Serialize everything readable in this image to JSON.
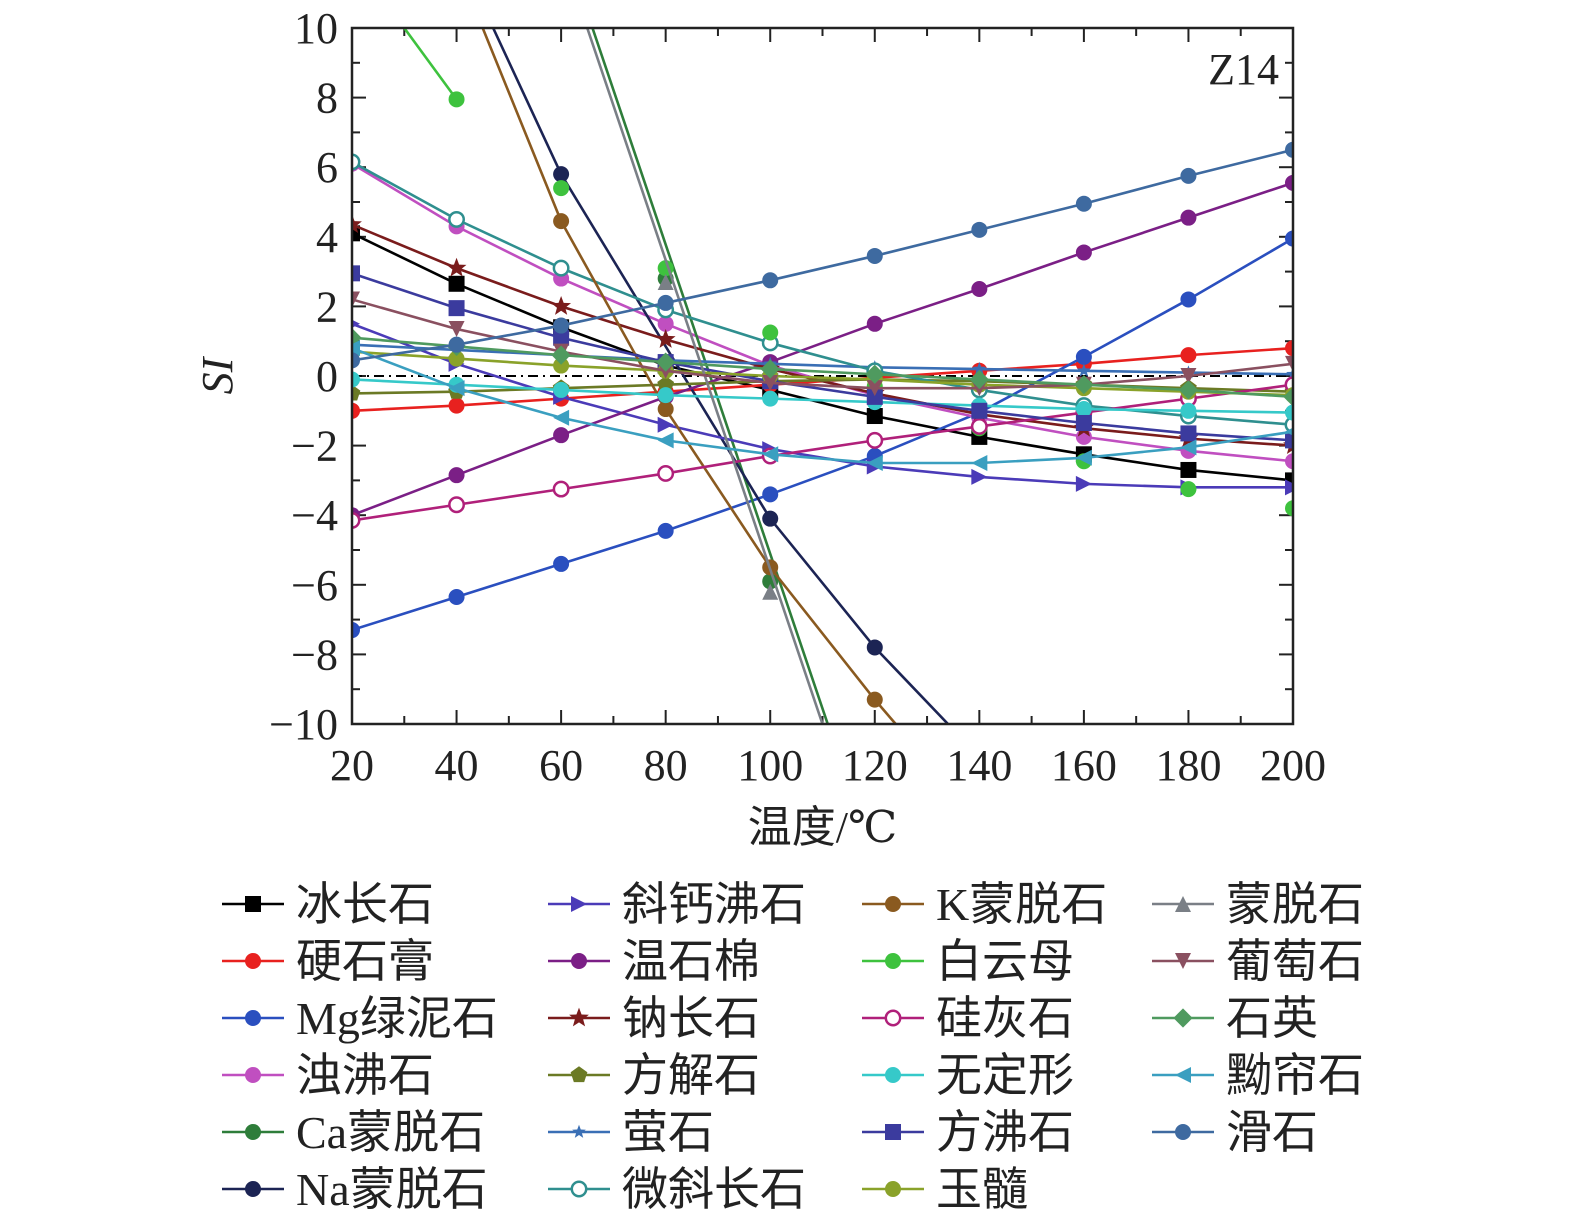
{
  "chart_data": {
    "type": "line",
    "panel_label": "Z14",
    "xlabel": "温度/℃",
    "ylabel": "SI",
    "xlim": [
      20,
      200
    ],
    "ylim": [
      -10,
      10
    ],
    "x_ticks": [
      "20",
      "40",
      "60",
      "80",
      "100",
      "120",
      "140",
      "160",
      "180",
      "200"
    ],
    "y_ticks": [
      "10",
      "8",
      "6",
      "4",
      "2",
      "0",
      "−2",
      "−4",
      "−6",
      "−8",
      "−10"
    ],
    "reference_line": {
      "y": 0,
      "style": "dash-dot",
      "color": "#000000"
    },
    "x": [
      20,
      40,
      60,
      80,
      100,
      120,
      140,
      160,
      180,
      200
    ],
    "legend_columns": 4,
    "series": [
      {
        "name": "冰长石",
        "color": "#000000",
        "marker": "square",
        "values": [
          4.1,
          2.65,
          1.4,
          0.3,
          -0.4,
          -1.15,
          -1.75,
          -2.25,
          -2.7,
          -3.0
        ]
      },
      {
        "name": "硬石膏",
        "color": "#e8211f",
        "marker": "circle",
        "values": [
          -1.0,
          -0.85,
          -0.65,
          -0.45,
          -0.25,
          -0.05,
          0.15,
          0.35,
          0.6,
          0.8
        ]
      },
      {
        "name": "Mg绿泥石",
        "color": "#2a4fbf",
        "marker": "circle",
        "values": [
          -7.3,
          -6.35,
          -5.4,
          -4.45,
          -3.4,
          -2.3,
          -1.05,
          0.55,
          2.2,
          3.95
        ]
      },
      {
        "name": "浊沸石",
        "color": "#c04fc0",
        "marker": "circle",
        "values": [
          6.1,
          4.3,
          2.8,
          1.5,
          0.3,
          -0.55,
          -1.2,
          -1.75,
          -2.15,
          -2.45
        ]
      },
      {
        "name": "Ca蒙脱石",
        "color": "#2e7d3a",
        "marker": "circle",
        "values": [
          null,
          null,
          null,
          2.8,
          -5.9,
          null,
          null,
          null,
          null,
          null
        ],
        "lines_x": [
          66,
          111
        ],
        "lines_y": [
          10,
          -10
        ]
      },
      {
        "name": "Na蒙脱石",
        "color": "#1c2454",
        "marker": "circle",
        "values": [
          null,
          null,
          5.8,
          null,
          -4.1,
          -7.8,
          null,
          null,
          null,
          null
        ],
        "lines_x": [
          47,
          60,
          100,
          120,
          134
        ],
        "lines_y": [
          10,
          5.8,
          -4.1,
          -7.8,
          -10
        ]
      },
      {
        "name": "斜钙沸石",
        "color": "#4b3bb8",
        "marker": "triangle-right",
        "values": [
          1.5,
          0.35,
          -0.6,
          -1.4,
          -2.1,
          -2.6,
          -2.9,
          -3.1,
          -3.2,
          -3.2
        ]
      },
      {
        "name": "温石棉",
        "color": "#7b1f86",
        "marker": "circle",
        "values": [
          -4.0,
          -2.85,
          -1.7,
          -0.6,
          0.4,
          1.5,
          2.5,
          3.55,
          4.55,
          5.55
        ]
      },
      {
        "name": "钠长石",
        "color": "#7a1c1c",
        "marker": "star",
        "values": [
          4.35,
          3.1,
          2.0,
          1.05,
          0.2,
          -0.5,
          -1.1,
          -1.5,
          -1.8,
          -2.0
        ]
      },
      {
        "name": "方解石",
        "color": "#6b7a25",
        "marker": "pentagon",
        "values": [
          -0.5,
          -0.45,
          -0.35,
          -0.25,
          -0.15,
          -0.1,
          -0.15,
          -0.25,
          -0.35,
          -0.45
        ]
      },
      {
        "name": "萤石",
        "color": "#3a6fb5",
        "marker": "star-small",
        "values": [
          0.9,
          0.75,
          0.6,
          0.45,
          0.35,
          0.25,
          0.2,
          0.15,
          0.1,
          0.05
        ]
      },
      {
        "name": "微斜长石",
        "color": "#2f8f8f",
        "marker": "circle-open",
        "values": [
          6.15,
          4.5,
          3.1,
          1.9,
          0.95,
          0.15,
          -0.4,
          -0.85,
          -1.15,
          -1.4
        ]
      },
      {
        "name": "K蒙脱石",
        "color": "#8a5a20",
        "marker": "circle",
        "values": [
          null,
          null,
          4.45,
          -0.95,
          -5.5,
          -9.3,
          null,
          null,
          null,
          null
        ],
        "lines_x": [
          45,
          60,
          80,
          100,
          120,
          124
        ],
        "lines_y": [
          10,
          4.45,
          -0.95,
          -5.5,
          -9.3,
          -10
        ]
      },
      {
        "name": "白云母",
        "color": "#3ec23e",
        "marker": "circle",
        "values": [
          null,
          7.95,
          5.4,
          3.1,
          1.25,
          -0.3,
          -1.5,
          -2.45,
          -3.25,
          -3.8
        ],
        "lines_x": [
          30,
          40
        ],
        "lines_y": [
          10,
          7.95
        ]
      },
      {
        "name": "硅灰石",
        "color": "#b0207a",
        "marker": "circle-open",
        "values": [
          -4.15,
          -3.7,
          -3.25,
          -2.8,
          -2.3,
          -1.85,
          -1.45,
          -1.05,
          -0.65,
          -0.25
        ]
      },
      {
        "name": "无定形",
        "color": "#36c9c9",
        "marker": "circle",
        "values": [
          -0.1,
          -0.25,
          -0.4,
          -0.55,
          -0.65,
          -0.75,
          -0.85,
          -0.95,
          -1.0,
          -1.05
        ]
      },
      {
        "name": "方沸石",
        "color": "#3b3b9e",
        "marker": "square",
        "values": [
          2.95,
          1.95,
          1.1,
          0.4,
          -0.15,
          -0.6,
          -1.0,
          -1.35,
          -1.65,
          -1.85
        ]
      },
      {
        "name": "玉髓",
        "color": "#8aa22a",
        "marker": "circle",
        "values": [
          0.7,
          0.5,
          0.3,
          0.15,
          0.0,
          -0.1,
          -0.25,
          -0.35,
          -0.45,
          -0.55
        ]
      },
      {
        "name": "蒙脱石",
        "color": "#7a7f86",
        "marker": "triangle-up",
        "values": [
          null,
          null,
          null,
          2.7,
          -6.2,
          null,
          null,
          null,
          null,
          null
        ],
        "lines_x": [
          65,
          110
        ],
        "lines_y": [
          10,
          -10
        ]
      },
      {
        "name": "葡萄石",
        "color": "#8a5060",
        "marker": "triangle-down",
        "values": [
          2.2,
          1.35,
          0.7,
          0.15,
          -0.2,
          -0.35,
          -0.35,
          -0.25,
          0.0,
          0.35
        ]
      },
      {
        "name": "石英",
        "color": "#4f9a5f",
        "marker": "diamond",
        "values": [
          1.1,
          0.85,
          0.6,
          0.4,
          0.2,
          0.05,
          -0.1,
          -0.25,
          -0.4,
          -0.6
        ]
      },
      {
        "name": "黝帘石",
        "color": "#3a9fc0",
        "marker": "triangle-left",
        "values": [
          0.8,
          -0.35,
          -1.2,
          -1.85,
          -2.25,
          -2.5,
          -2.5,
          -2.35,
          -2.05,
          -1.6
        ]
      },
      {
        "name": "滑石",
        "color": "#3e6aa0",
        "marker": "circle",
        "values": [
          0.45,
          0.9,
          1.45,
          2.1,
          2.75,
          3.45,
          4.2,
          4.95,
          5.75,
          6.5
        ]
      }
    ]
  }
}
